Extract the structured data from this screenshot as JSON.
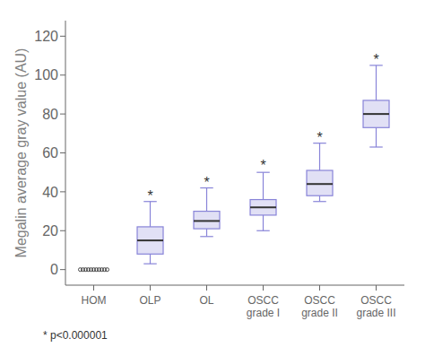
{
  "chart_data": {
    "type": "box",
    "categories": [
      "HOM",
      "OLP",
      "OL",
      "OSCC\ngrade I",
      "OSCC\ngrade II",
      "OSCC\ngrade III"
    ],
    "boxes": [
      {
        "fliers": [
          0,
          0,
          0,
          0,
          0,
          0,
          0,
          0,
          0,
          0,
          0
        ]
      },
      {
        "whislo": 3,
        "q1": 8,
        "med": 15,
        "q3": 22,
        "whishi": 35
      },
      {
        "whislo": 17,
        "q1": 21,
        "med": 25,
        "q3": 30,
        "whishi": 42
      },
      {
        "whislo": 20,
        "q1": 28,
        "med": 32,
        "q3": 36,
        "whishi": 50
      },
      {
        "whislo": 35,
        "q1": 38,
        "med": 44,
        "q3": 51,
        "whishi": 65
      },
      {
        "whislo": 63,
        "q1": 73,
        "med": 80,
        "q3": 87,
        "whishi": 105
      }
    ],
    "annotations": [
      {
        "text": "*",
        "x": "OLP",
        "y": 38
      },
      {
        "text": "*",
        "x": "OL",
        "y": 45
      },
      {
        "text": "*",
        "x": "OSCC\ngrade I",
        "y": 54
      },
      {
        "text": "*",
        "x": "OSCC\ngrade II",
        "y": 68
      },
      {
        "text": "*",
        "x": "OSCC\ngrade III",
        "y": 108
      }
    ],
    "ylabel": "Megalin average gray value (AU)",
    "footnote": "* p<0.000001",
    "ylim": [
      -8,
      128
    ],
    "yticks": [
      0,
      20,
      40,
      60,
      80,
      100,
      120
    ],
    "grid": false
  }
}
